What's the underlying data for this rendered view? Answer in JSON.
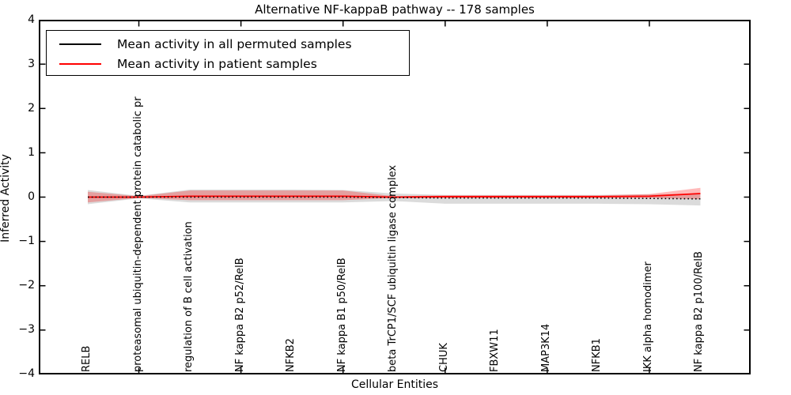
{
  "figure": {
    "title": "Alternative NF-kappaB pathway -- 178 samples",
    "xlabel": "Cellular Entities",
    "ylabel": "Inferred Activity",
    "legend": {
      "entries": [
        {
          "label": "Mean activity in all permuted samples",
          "color": "#000000"
        },
        {
          "label": "Mean activity in patient samples",
          "color": "#ff0000"
        }
      ]
    }
  },
  "chart_data": {
    "type": "line",
    "title": "Alternative NF-kappaB pathway -- 178 samples",
    "xlabel": "Cellular Entities",
    "ylabel": "Inferred Activity",
    "ylim": [
      -4,
      4
    ],
    "grid": false,
    "legend_position": "upper left",
    "ytick_values": [
      4,
      3,
      2,
      1,
      0,
      -1,
      -2,
      -3,
      -4
    ],
    "ytick_labels": [
      "4",
      "3",
      "2",
      "1",
      "0",
      "−1",
      "−2",
      "−3",
      "−4"
    ],
    "xtick_indices": [
      1,
      3,
      5,
      7,
      9,
      11
    ],
    "categories": [
      "RELB",
      "proteasomal ubiquitin-dependent protein catabolic pr",
      "regulation of B cell activation",
      "NF kappa B2 p52/RelB",
      "NFKB2",
      "NF kappa B1 p50/RelB",
      "beta TrCP1/SCF ubiquitin ligase complex",
      "CHUK",
      "FBXW11",
      "MAP3K14",
      "NFKB1",
      "IKK alpha homodimer",
      "NF kappa B2 p100/RelB"
    ],
    "series": [
      {
        "name": "Mean activity in all permuted samples",
        "color": "#000000",
        "linestyle": "dotted",
        "band_color": "rgba(0,0,0,0.14)",
        "values": [
          0,
          0,
          0,
          0,
          0,
          0,
          -0.01,
          -0.02,
          -0.02,
          -0.02,
          -0.02,
          -0.03,
          -0.04
        ],
        "band_upper": [
          0.16,
          0.03,
          0.17,
          0.17,
          0.17,
          0.16,
          0.08,
          0.05,
          0.05,
          0.05,
          0.05,
          0.06,
          0.08
        ],
        "band_lower": [
          -0.16,
          -0.03,
          -0.12,
          -0.12,
          -0.12,
          -0.12,
          -0.09,
          -0.15,
          -0.15,
          -0.15,
          -0.15,
          -0.16,
          -0.19
        ]
      },
      {
        "name": "Mean activity in patient samples",
        "color": "#ff0000",
        "linestyle": "solid",
        "band_color": "rgba(255,0,0,0.27)",
        "values": [
          0,
          0,
          0.02,
          0.02,
          0.02,
          0.02,
          0,
          0.01,
          0.01,
          0.01,
          0.01,
          0.02,
          0.08
        ],
        "band_upper": [
          0.12,
          0.02,
          0.15,
          0.15,
          0.15,
          0.15,
          0.02,
          0.04,
          0.04,
          0.04,
          0.04,
          0.07,
          0.21
        ],
        "band_lower": [
          -0.12,
          -0.02,
          -0.07,
          -0.07,
          -0.07,
          -0.07,
          -0.02,
          -0.02,
          -0.02,
          -0.02,
          -0.02,
          -0.02,
          -0.05
        ]
      }
    ]
  }
}
